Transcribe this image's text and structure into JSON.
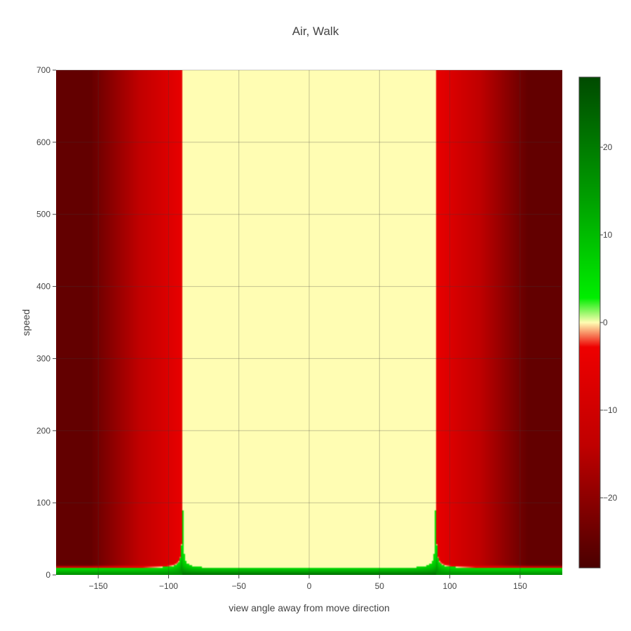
{
  "chart_data": {
    "type": "heatmap",
    "title": "Air, Walk",
    "xlabel": "view angle away from move direction",
    "ylabel": "speed",
    "xlim": [
      -180,
      180
    ],
    "ylim": [
      0,
      700
    ],
    "x_ticks": [
      -150,
      -100,
      -50,
      0,
      50,
      100,
      150
    ],
    "x_tick_labels": [
      "−150",
      "−100",
      "−50",
      "0",
      "50",
      "100",
      "150"
    ],
    "y_ticks": [
      0,
      100,
      200,
      300,
      400,
      500,
      600,
      700
    ],
    "y_tick_labels": [
      "0",
      "100",
      "200",
      "300",
      "400",
      "500",
      "600",
      "700"
    ],
    "colorbar": {
      "range": [
        -28,
        28
      ],
      "ticks": [
        20,
        10,
        0,
        -10,
        -20
      ],
      "tick_labels": [
        "20",
        "10",
        "0",
        "−10",
        "−20"
      ],
      "colorscale": [
        [
          0.0,
          "#4a0000"
        ],
        [
          0.25,
          "#c00000"
        ],
        [
          0.45,
          "#ee0000"
        ],
        [
          0.5,
          "#fffdb3"
        ],
        [
          0.55,
          "#00ee00"
        ],
        [
          0.75,
          "#00a000"
        ],
        [
          1.0,
          "#004a00"
        ]
      ]
    },
    "grid": true,
    "sample_values": [
      {
        "x": -150,
        "y": 400,
        "value": -26
      },
      {
        "x": -100,
        "y": 400,
        "value": -5
      },
      {
        "x": 0,
        "y": 400,
        "value": 0
      },
      {
        "x": 100,
        "y": 400,
        "value": -5
      },
      {
        "x": 150,
        "y": 400,
        "value": -26
      },
      {
        "x": 0,
        "y": 10,
        "value": 15
      },
      {
        "x": -90,
        "y": 80,
        "value": 6
      },
      {
        "x": 90,
        "y": 80,
        "value": 6
      }
    ]
  }
}
